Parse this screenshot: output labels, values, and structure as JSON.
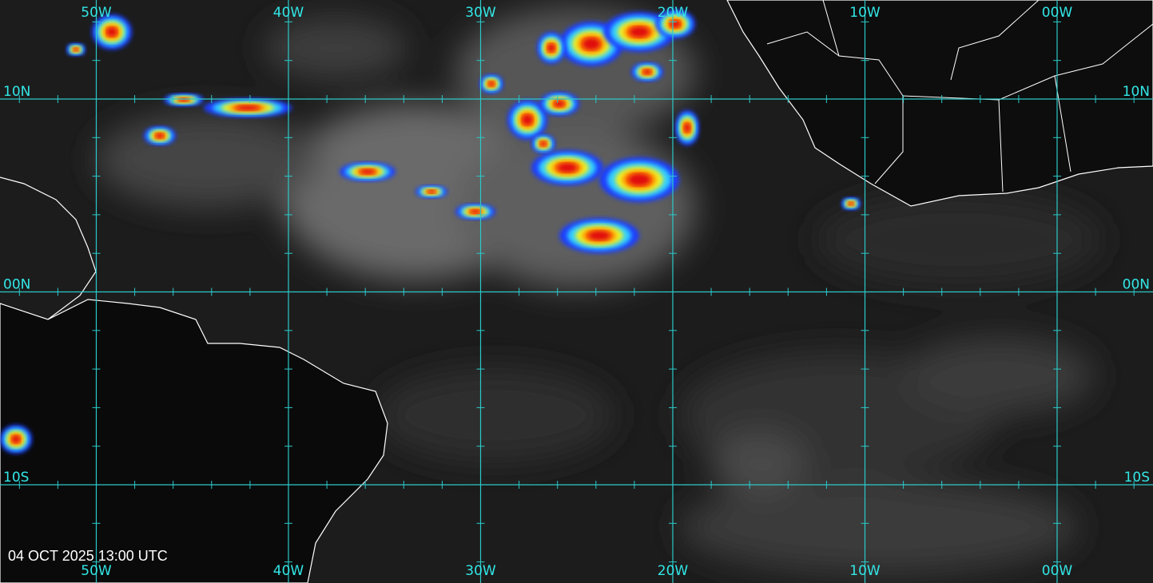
{
  "map": {
    "longitude_labels_top": [
      "50W",
      "40W",
      "30W",
      "20W",
      "10W",
      "00W"
    ],
    "longitude_labels_bottom": [
      "50W",
      "40W",
      "30W",
      "20W",
      "10W",
      "00W"
    ],
    "latitude_labels_left": [
      "10N",
      "00N",
      "10S"
    ],
    "latitude_labels_right": [
      "10N",
      "00N",
      "10S"
    ],
    "timestamp": "04 OCT 2025 13:00 UTC"
  }
}
